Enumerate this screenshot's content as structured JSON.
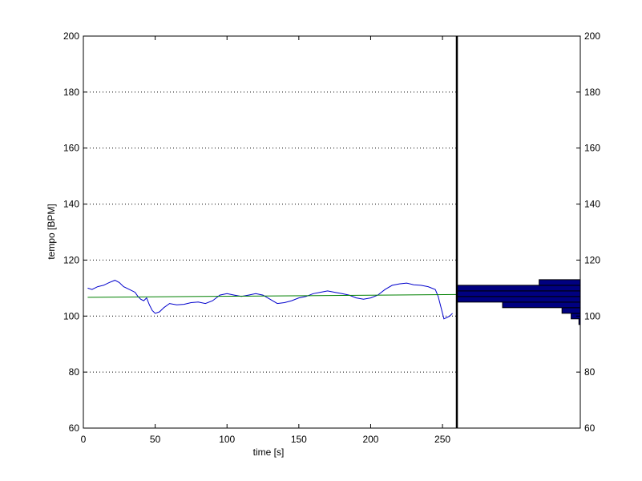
{
  "chart_data": {
    "type": "line",
    "xlabel": "time [s]",
    "ylabel": "tempo [BPM]",
    "xlim": [
      0,
      260
    ],
    "ylim": [
      60,
      200
    ],
    "x_ticks": [
      0,
      50,
      100,
      150,
      200,
      250
    ],
    "y_ticks": [
      60,
      80,
      100,
      120,
      140,
      160,
      180,
      200
    ],
    "grid": "horizontal dotted",
    "series": [
      {
        "color": "#0000cc",
        "x": [
          3,
          6,
          10,
          14,
          18,
          22,
          25,
          28,
          32,
          36,
          38,
          40,
          42,
          44,
          46,
          48,
          50,
          53,
          56,
          60,
          65,
          70,
          75,
          80,
          85,
          90,
          95,
          100,
          105,
          110,
          115,
          120,
          125,
          130,
          135,
          140,
          145,
          150,
          155,
          160,
          165,
          170,
          175,
          180,
          185,
          190,
          195,
          200,
          205,
          210,
          215,
          220,
          225,
          230,
          235,
          240,
          245,
          247,
          249,
          251,
          253,
          255,
          257
        ],
        "y": [
          110,
          109.5,
          110.5,
          111,
          112,
          112.8,
          112,
          110.5,
          109.5,
          108.5,
          107,
          106,
          105.5,
          106.5,
          104,
          102,
          101,
          101.5,
          103,
          104.5,
          104,
          104.2,
          104.8,
          105,
          104.5,
          105.5,
          107.5,
          108,
          107.5,
          107,
          107.5,
          108,
          107.5,
          106,
          104.5,
          104.8,
          105.5,
          106.5,
          107,
          108,
          108.5,
          109,
          108.5,
          108,
          107.5,
          106.5,
          106,
          106.5,
          107.5,
          109.5,
          111,
          111.5,
          111.8,
          111.2,
          111,
          110.5,
          109.5,
          107,
          103,
          99,
          99.5,
          100,
          101
        ]
      },
      {
        "color": "#008000",
        "x": [
          3,
          260
        ],
        "y": [
          106.7,
          107.7
        ]
      }
    ]
  },
  "histogram": {
    "ylim": [
      60,
      200
    ],
    "y_ticks": [
      60,
      80,
      100,
      120,
      140,
      160,
      180,
      200
    ],
    "bins": [
      {
        "y0": 97,
        "y1": 99,
        "count": 0.3
      },
      {
        "y0": 99,
        "y1": 101,
        "count": 2.0
      },
      {
        "y0": 101,
        "y1": 103,
        "count": 4.0
      },
      {
        "y0": 103,
        "y1": 105,
        "count": 17.0
      },
      {
        "y0": 105,
        "y1": 107,
        "count": 27.0
      },
      {
        "y0": 107,
        "y1": 109,
        "count": 27.0
      },
      {
        "y0": 109,
        "y1": 111,
        "count": 27.0
      },
      {
        "y0": 111,
        "y1": 113,
        "count": 9.0
      },
      {
        "y0": 113,
        "y1": 115,
        "count": 0.0
      }
    ],
    "max_count": 27.0,
    "bar_color": "#000080"
  }
}
